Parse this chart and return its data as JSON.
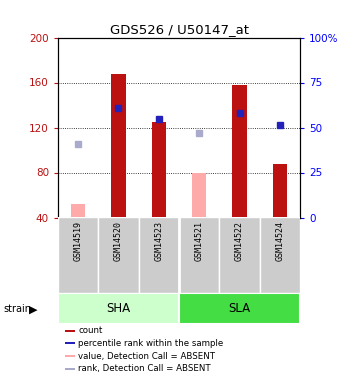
{
  "title": "GDS526 / U50147_at",
  "samples": [
    "GSM14519",
    "GSM14520",
    "GSM14523",
    "GSM14521",
    "GSM14522",
    "GSM14524"
  ],
  "sha_samples": [
    0,
    1,
    2
  ],
  "sla_samples": [
    3,
    4,
    5
  ],
  "red_bars": [
    null,
    168,
    125,
    null,
    158,
    88
  ],
  "pink_bars": [
    52,
    null,
    null,
    80,
    null,
    null
  ],
  "blue_squares": [
    null,
    137,
    128,
    null,
    133,
    122
  ],
  "light_blue_squares": [
    105,
    null,
    null,
    115,
    null,
    null
  ],
  "ymin": 40,
  "ymax": 200,
  "yticks_left": [
    40,
    80,
    120,
    160,
    200
  ],
  "right_tick_positions": [
    40,
    80,
    120,
    160,
    200
  ],
  "right_tick_labels": [
    "0",
    "25",
    "50",
    "75",
    "100%"
  ],
  "bar_width": 0.35,
  "bar_color_red": "#BB1111",
  "bar_color_pink": "#FFAAAA",
  "sq_color_blue": "#2222BB",
  "sq_color_lightblue": "#AAAACC",
  "sha_color_light": "#CCFFCC",
  "sla_color_dark": "#44DD44",
  "cell_color": "#CCCCCC",
  "legend_items": [
    {
      "label": "count",
      "color": "#BB1111"
    },
    {
      "label": "percentile rank within the sample",
      "color": "#2222BB"
    },
    {
      "label": "value, Detection Call = ABSENT",
      "color": "#FFAAAA"
    },
    {
      "label": "rank, Detection Call = ABSENT",
      "color": "#AAAACC"
    }
  ]
}
